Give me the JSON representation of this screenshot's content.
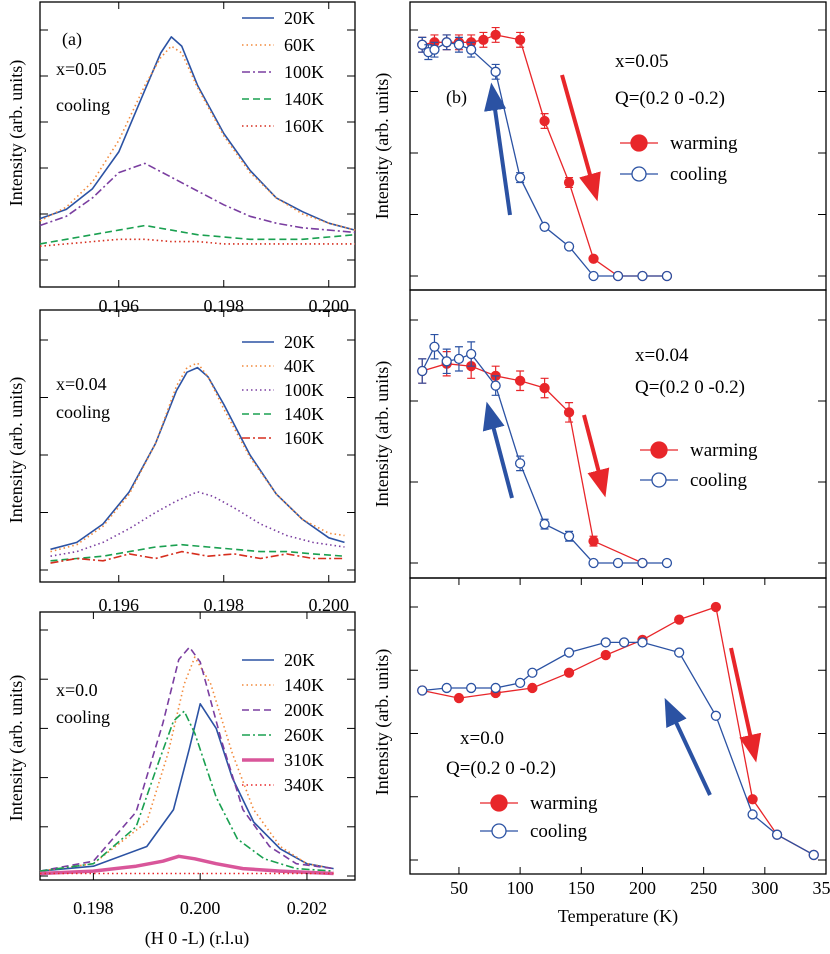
{
  "figure": {
    "panel_a_label": "(a)",
    "panel_b_label": "(b)"
  },
  "colors": {
    "red": "#e8262a",
    "blue": "#2b52a3",
    "orange": "#f28a3c",
    "purple": "#7a3ea0",
    "green": "#1aa050",
    "darkred": "#d62e1e",
    "pink": "#d9569a"
  },
  "chart_data": [
    {
      "id": "a1",
      "type": "line",
      "ylabel": "Intensity (arb. units)",
      "xlabel": "",
      "xlim": [
        0.1945,
        0.2005
      ],
      "ylim": [
        0,
        1.0
      ],
      "xticks": [
        "0.196",
        "0.198",
        "0.200"
      ],
      "xtick_values": [
        0.196,
        0.198,
        0.2
      ],
      "annotations": [
        "x=0.05",
        "cooling"
      ],
      "series": [
        {
          "name": "20K",
          "style": "solid",
          "color": "#2b52a3",
          "x": [
            0.1945,
            0.195,
            0.1955,
            0.196,
            0.1965,
            0.1968,
            0.197,
            0.1972,
            0.1975,
            0.198,
            0.1985,
            0.199,
            0.1995,
            0.2,
            0.2005
          ],
          "y": [
            0.18,
            0.22,
            0.31,
            0.47,
            0.74,
            0.9,
            0.97,
            0.93,
            0.76,
            0.55,
            0.39,
            0.27,
            0.21,
            0.16,
            0.13
          ]
        },
        {
          "name": "60K",
          "style": "dotted",
          "color": "#f28a3c",
          "x": [
            0.1945,
            0.195,
            0.1955,
            0.196,
            0.1965,
            0.1968,
            0.197,
            0.1972,
            0.1975,
            0.198,
            0.1985,
            0.199,
            0.1995,
            0.2,
            0.2005
          ],
          "y": [
            0.17,
            0.23,
            0.34,
            0.52,
            0.76,
            0.88,
            0.93,
            0.9,
            0.75,
            0.54,
            0.38,
            0.27,
            0.2,
            0.16,
            0.13
          ]
        },
        {
          "name": "100K",
          "style": "dashdot",
          "color": "#7a3ea0",
          "x": [
            0.1945,
            0.195,
            0.1955,
            0.196,
            0.1965,
            0.197,
            0.1975,
            0.198,
            0.1985,
            0.199,
            0.1995,
            0.2,
            0.2005
          ],
          "y": [
            0.15,
            0.19,
            0.27,
            0.38,
            0.42,
            0.36,
            0.3,
            0.24,
            0.19,
            0.16,
            0.14,
            0.13,
            0.12
          ]
        },
        {
          "name": "140K",
          "style": "dashed",
          "color": "#1aa050",
          "x": [
            0.1945,
            0.195,
            0.1955,
            0.196,
            0.1965,
            0.197,
            0.1975,
            0.198,
            0.1985,
            0.199,
            0.1995,
            0.2,
            0.2005
          ],
          "y": [
            0.07,
            0.09,
            0.11,
            0.13,
            0.15,
            0.13,
            0.11,
            0.1,
            0.09,
            0.09,
            0.09,
            0.1,
            0.11
          ]
        },
        {
          "name": "160K",
          "style": "dotted",
          "color": "#d62e1e",
          "x": [
            0.1945,
            0.195,
            0.1955,
            0.196,
            0.1965,
            0.197,
            0.1975,
            0.198,
            0.1985,
            0.199,
            0.1995,
            0.2,
            0.2005
          ],
          "y": [
            0.06,
            0.07,
            0.08,
            0.09,
            0.09,
            0.08,
            0.08,
            0.07,
            0.07,
            0.07,
            0.07,
            0.07,
            0.07
          ]
        }
      ]
    },
    {
      "id": "a2",
      "type": "line",
      "ylabel": "Intensity (arb. units)",
      "xlabel": "",
      "xlim": [
        0.1945,
        0.2005
      ],
      "ylim": [
        0,
        1.0
      ],
      "xticks": [
        "0.196",
        "0.198",
        "0.200"
      ],
      "xtick_values": [
        0.196,
        0.198,
        0.2
      ],
      "annotations": [
        "x=0.04",
        "cooling"
      ],
      "series": [
        {
          "name": "20K",
          "style": "solid",
          "color": "#2b52a3",
          "x": [
            0.1947,
            0.1952,
            0.1957,
            0.1962,
            0.1967,
            0.1971,
            0.1973,
            0.1975,
            0.1977,
            0.198,
            0.1985,
            0.199,
            0.1995,
            0.2,
            0.2003
          ],
          "y": [
            0.09,
            0.12,
            0.2,
            0.34,
            0.55,
            0.78,
            0.86,
            0.88,
            0.84,
            0.72,
            0.5,
            0.33,
            0.22,
            0.14,
            0.12
          ]
        },
        {
          "name": "40K",
          "style": "dotted",
          "color": "#f28a3c",
          "x": [
            0.1947,
            0.1952,
            0.1957,
            0.1962,
            0.1967,
            0.1971,
            0.1973,
            0.1975,
            0.1977,
            0.198,
            0.1985,
            0.199,
            0.1995,
            0.2,
            0.2003
          ],
          "y": [
            0.08,
            0.11,
            0.19,
            0.33,
            0.55,
            0.8,
            0.88,
            0.9,
            0.84,
            0.7,
            0.49,
            0.33,
            0.22,
            0.16,
            0.15
          ]
        },
        {
          "name": "100K",
          "style": "dotted",
          "color": "#7a3ea0",
          "x": [
            0.1947,
            0.1952,
            0.1957,
            0.1962,
            0.1967,
            0.1971,
            0.1975,
            0.1978,
            0.1982,
            0.1987,
            0.1992,
            0.1997,
            0.2003
          ],
          "y": [
            0.06,
            0.08,
            0.12,
            0.18,
            0.25,
            0.3,
            0.34,
            0.32,
            0.27,
            0.2,
            0.15,
            0.12,
            0.1
          ]
        },
        {
          "name": "140K",
          "style": "dashed",
          "color": "#1aa050",
          "x": [
            0.1947,
            0.1952,
            0.1957,
            0.1962,
            0.1967,
            0.1972,
            0.1977,
            0.1982,
            0.1987,
            0.1992,
            0.1997,
            0.2003
          ],
          "y": [
            0.04,
            0.05,
            0.06,
            0.08,
            0.1,
            0.11,
            0.1,
            0.09,
            0.08,
            0.08,
            0.07,
            0.06
          ]
        },
        {
          "name": "160K",
          "style": "dashdot",
          "color": "#d62e1e",
          "x": [
            0.1947,
            0.1952,
            0.1957,
            0.1962,
            0.1967,
            0.1972,
            0.1977,
            0.1982,
            0.1987,
            0.1992,
            0.1997,
            0.2003
          ],
          "y": [
            0.03,
            0.05,
            0.04,
            0.07,
            0.05,
            0.08,
            0.06,
            0.07,
            0.05,
            0.07,
            0.05,
            0.05
          ]
        }
      ]
    },
    {
      "id": "a3",
      "type": "line",
      "ylabel": "Intensity (arb. units)",
      "xlabel": "(H 0 -L) (r.l.u)",
      "xlim": [
        0.197,
        0.2029
      ],
      "ylim": [
        0,
        1.0
      ],
      "xticks": [
        "0.198",
        "0.200",
        "0.202"
      ],
      "xtick_values": [
        0.198,
        0.2,
        0.202
      ],
      "annotations": [
        "x=0.0",
        "cooling"
      ],
      "series": [
        {
          "name": "20K",
          "style": "solid",
          "color": "#2b52a3",
          "x": [
            0.197,
            0.198,
            0.199,
            0.1995,
            0.1998,
            0.2,
            0.2003,
            0.2006,
            0.201,
            0.2015,
            0.202,
            0.2025
          ],
          "y": [
            0.02,
            0.04,
            0.12,
            0.27,
            0.52,
            0.7,
            0.6,
            0.4,
            0.22,
            0.11,
            0.05,
            0.03
          ]
        },
        {
          "name": "140K",
          "style": "dotted",
          "color": "#f28a3c",
          "x": [
            0.197,
            0.198,
            0.199,
            0.1994,
            0.1997,
            0.1999,
            0.2002,
            0.2006,
            0.201,
            0.2015,
            0.202,
            0.2025
          ],
          "y": [
            0.02,
            0.05,
            0.22,
            0.5,
            0.78,
            0.89,
            0.78,
            0.5,
            0.27,
            0.12,
            0.05,
            0.03
          ]
        },
        {
          "name": "200K",
          "style": "dashed",
          "color": "#7a3ea0",
          "x": [
            0.197,
            0.198,
            0.1988,
            0.1993,
            0.1996,
            0.1998,
            0.2,
            0.2004,
            0.2008,
            0.2013,
            0.2018,
            0.2025
          ],
          "y": [
            0.02,
            0.06,
            0.26,
            0.62,
            0.88,
            0.93,
            0.87,
            0.55,
            0.27,
            0.12,
            0.05,
            0.03
          ]
        },
        {
          "name": "260K",
          "style": "dashdot",
          "color": "#1aa050",
          "x": [
            0.197,
            0.198,
            0.1988,
            0.1992,
            0.1995,
            0.1997,
            0.1999,
            0.2003,
            0.2007,
            0.2012,
            0.2018,
            0.2025
          ],
          "y": [
            0.02,
            0.05,
            0.2,
            0.45,
            0.63,
            0.67,
            0.58,
            0.32,
            0.15,
            0.07,
            0.03,
            0.02
          ]
        },
        {
          "name": "310K",
          "style": "thick",
          "color": "#d9569a",
          "x": [
            0.197,
            0.198,
            0.1988,
            0.1993,
            0.1996,
            0.1999,
            0.2003,
            0.2008,
            0.2015,
            0.2025
          ],
          "y": [
            0.01,
            0.02,
            0.04,
            0.06,
            0.08,
            0.07,
            0.05,
            0.03,
            0.02,
            0.01
          ]
        },
        {
          "name": "340K",
          "style": "dotted",
          "color": "#e8262a",
          "x": [
            0.197,
            0.198,
            0.199,
            0.2,
            0.201,
            0.202,
            0.2025
          ],
          "y": [
            0.01,
            0.01,
            0.01,
            0.01,
            0.01,
            0.01,
            0.01
          ]
        }
      ]
    },
    {
      "id": "b1",
      "type": "scatter",
      "ylabel": "Intensity (arb. units)",
      "xlabel": "",
      "xlim": [
        10,
        350
      ],
      "ylim": [
        0,
        1.0
      ],
      "annotations": [
        "x=0.05",
        "Q=(0.2 0 -0.2)"
      ],
      "series": [
        {
          "name": "warming",
          "marker": "filled",
          "color": "#e8262a",
          "x": [
            20,
            30,
            40,
            50,
            60,
            70,
            80,
            100,
            120,
            140,
            160,
            180,
            200,
            220
          ],
          "y": [
            0.94,
            0.95,
            0.95,
            0.95,
            0.95,
            0.96,
            0.98,
            0.96,
            0.63,
            0.38,
            0.07,
            0.0,
            0.0,
            0.0
          ],
          "err": [
            0.03,
            0.03,
            0.03,
            0.03,
            0.03,
            0.03,
            0.03,
            0.03,
            0.03,
            0.02,
            0.01,
            0.0,
            0.0,
            0.0
          ]
        },
        {
          "name": "cooling",
          "marker": "open",
          "color": "#2b52a3",
          "x": [
            20,
            25,
            30,
            40,
            50,
            60,
            80,
            100,
            120,
            140,
            160,
            180,
            200,
            220
          ],
          "y": [
            0.94,
            0.91,
            0.92,
            0.95,
            0.94,
            0.92,
            0.83,
            0.4,
            0.2,
            0.12,
            0.0,
            0.0,
            0.0,
            0.0
          ],
          "err": [
            0.03,
            0.03,
            0.03,
            0.03,
            0.03,
            0.03,
            0.03,
            0.02,
            0.01,
            0.01,
            0.0,
            0.0,
            0.0,
            0.0
          ]
        }
      ]
    },
    {
      "id": "b2",
      "type": "scatter",
      "ylabel": "Intensity (arb. units)",
      "xlabel": "",
      "xlim": [
        10,
        350
      ],
      "ylim": [
        0,
        1.0
      ],
      "annotations": [
        "x=0.04",
        "Q=(0.2 0 -0.2)"
      ],
      "series": [
        {
          "name": "warming",
          "marker": "filled",
          "color": "#e8262a",
          "x": [
            20,
            40,
            60,
            80,
            100,
            120,
            140,
            160,
            200
          ],
          "y": [
            0.79,
            0.82,
            0.81,
            0.77,
            0.75,
            0.72,
            0.62,
            0.09,
            0.0
          ],
          "err": [
            0.05,
            0.05,
            0.05,
            0.04,
            0.04,
            0.04,
            0.04,
            0.02,
            0.0
          ]
        },
        {
          "name": "cooling",
          "marker": "open",
          "color": "#2b52a3",
          "x": [
            20,
            30,
            40,
            50,
            60,
            80,
            100,
            120,
            140,
            160,
            180,
            200,
            220
          ],
          "y": [
            0.79,
            0.89,
            0.83,
            0.84,
            0.86,
            0.73,
            0.41,
            0.16,
            0.11,
            0.0,
            0.0,
            0.0,
            0.0
          ],
          "err": [
            0.05,
            0.05,
            0.05,
            0.05,
            0.05,
            0.04,
            0.03,
            0.02,
            0.02,
            0.0,
            0.0,
            0.0,
            0.0
          ]
        }
      ]
    },
    {
      "id": "b3",
      "type": "scatter",
      "ylabel": "Intensity (arb. units)",
      "xlabel": "Temperature (K)",
      "xlim": [
        10,
        350
      ],
      "ylim": [
        0,
        1.0
      ],
      "xticks": [
        "50",
        "100",
        "150",
        "200",
        "250",
        "300",
        "350"
      ],
      "xtick_values": [
        50,
        100,
        150,
        200,
        250,
        300,
        350
      ],
      "annotations": [
        "x=0.0",
        "Q=(0.2 0 -0.2)"
      ],
      "series": [
        {
          "name": "warming",
          "marker": "filled",
          "color": "#e8262a",
          "x": [
            20,
            50,
            80,
            110,
            140,
            170,
            200,
            230,
            260,
            290,
            310,
            340
          ],
          "y": [
            0.67,
            0.64,
            0.66,
            0.68,
            0.74,
            0.81,
            0.87,
            0.95,
            1.0,
            0.24,
            0.1,
            0.02
          ],
          "err": [
            0,
            0,
            0,
            0,
            0,
            0,
            0,
            0,
            0,
            0,
            0,
            0
          ]
        },
        {
          "name": "cooling",
          "marker": "open",
          "color": "#2b52a3",
          "x": [
            20,
            40,
            60,
            80,
            100,
            110,
            140,
            170,
            185,
            200,
            230,
            260,
            290,
            310,
            340
          ],
          "y": [
            0.67,
            0.68,
            0.68,
            0.68,
            0.7,
            0.74,
            0.82,
            0.86,
            0.86,
            0.86,
            0.82,
            0.57,
            0.18,
            0.1,
            0.02
          ],
          "err": [
            0,
            0,
            0,
            0,
            0,
            0,
            0,
            0,
            0,
            0,
            0,
            0,
            0,
            0,
            0
          ]
        }
      ]
    }
  ]
}
